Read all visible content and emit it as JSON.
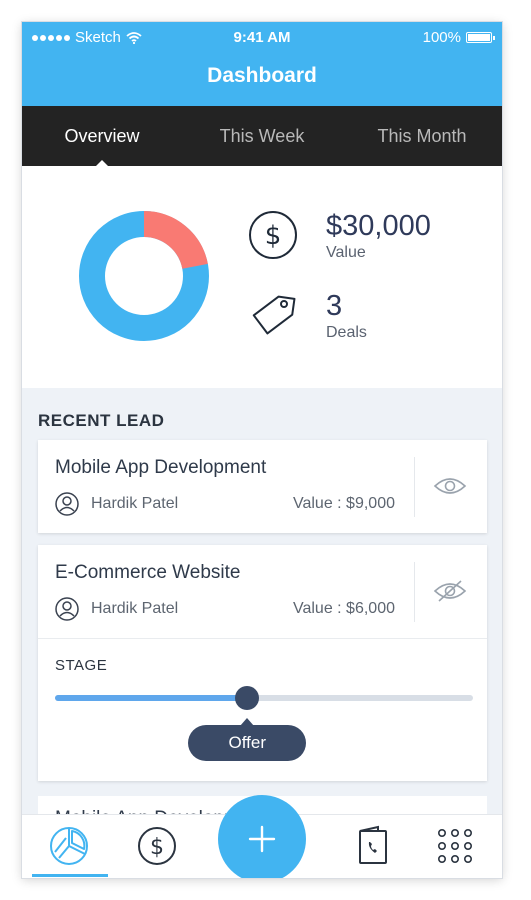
{
  "status_bar": {
    "carrier": "Sketch",
    "time": "9:41 AM",
    "battery": "100%"
  },
  "header": {
    "title": "Dashboard"
  },
  "tabs": [
    {
      "label": "Overview",
      "active": true
    },
    {
      "label": "This Week",
      "active": false
    },
    {
      "label": "This Month",
      "active": false
    }
  ],
  "summary": {
    "chart": {
      "red_fraction": 0.22,
      "colors": {
        "blue": "#42b4f1",
        "red": "#f97a73"
      }
    },
    "value_amount": "$30,000",
    "value_label": "Value",
    "deals_count": "3",
    "deals_label": "Deals"
  },
  "recent_lead": {
    "heading": "RECENT LEAD",
    "leads": [
      {
        "title": "Mobile App Development",
        "person": "Hardik Patel",
        "value": "Value : $9,000",
        "icon": "eye-icon"
      },
      {
        "title": "E-Commerce Website",
        "person": "Hardik Patel",
        "value": "Value : $6,000",
        "icon": "eye-off-icon"
      }
    ],
    "stage": {
      "label": "STAGE",
      "current": "Offer",
      "progress": 0.46
    },
    "partial_title": "Mobile App Development"
  },
  "bottom_nav": [
    {
      "icon": "pie-chart-icon",
      "active": true
    },
    {
      "icon": "dollar-icon",
      "active": false
    },
    {
      "icon": "plus-icon",
      "active": false
    },
    {
      "icon": "contacts-book-icon",
      "active": false
    },
    {
      "icon": "grid-apps-icon",
      "active": false
    }
  ],
  "colors": {
    "accent": "#42b4f1",
    "tab_bar": "#232323",
    "dark_knob": "#3a4a66"
  }
}
